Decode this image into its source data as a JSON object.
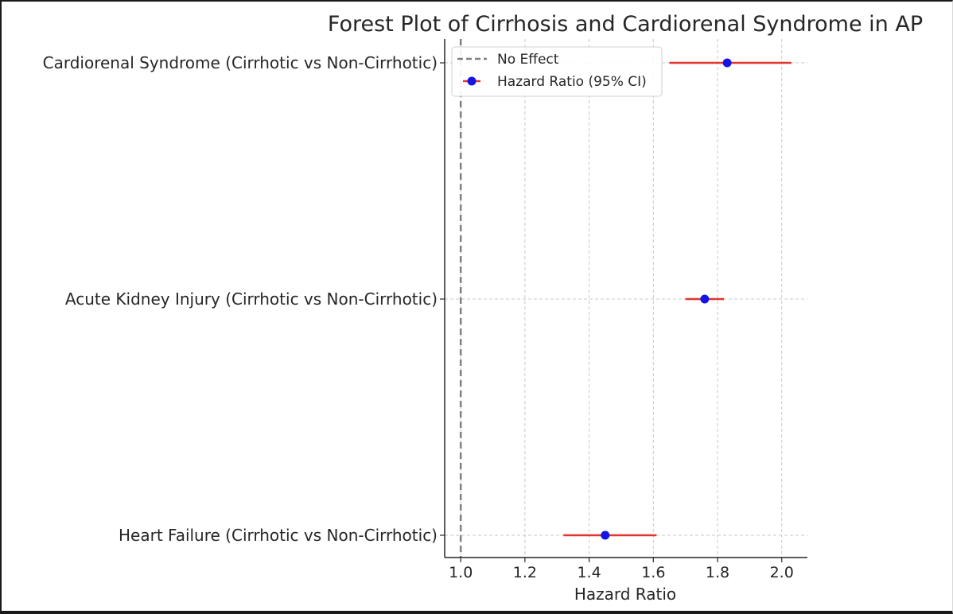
{
  "chart_data": {
    "type": "scatter",
    "title": "Forest Plot of Cirrhosis and Cardiorenal Syndrome in AP",
    "xlabel": "Hazard Ratio",
    "ylabel": "",
    "xlim": [
      0.95,
      2.08
    ],
    "xticks": [
      1.0,
      1.2,
      1.4,
      1.6,
      1.8,
      2.0
    ],
    "xtick_labels": [
      "1.0",
      "1.2",
      "1.4",
      "1.6",
      "1.8",
      "2.0"
    ],
    "grid": true,
    "legend_position": "top-left",
    "reference_line": {
      "x": 1.0,
      "label": "No Effect",
      "color": "#808080",
      "style": "dashed"
    },
    "series": [
      {
        "name": "Hazard Ratio (95% CI)",
        "marker_color": "#1414e6",
        "errorbar_color": "#e0362c",
        "points": [
          {
            "label": "Cardiorenal Syndrome (Cirrhotic vs Non-Cirrhotic)",
            "hr": 1.83,
            "ci_low": 1.65,
            "ci_high": 2.03
          },
          {
            "label": "Acute Kidney Injury (Cirrhotic vs Non-Cirrhotic)",
            "hr": 1.76,
            "ci_low": 1.7,
            "ci_high": 1.82
          },
          {
            "label": "Heart Failure (Cirrhotic vs Non-Cirrhotic)",
            "hr": 1.45,
            "ci_low": 1.32,
            "ci_high": 1.61
          }
        ]
      }
    ]
  }
}
